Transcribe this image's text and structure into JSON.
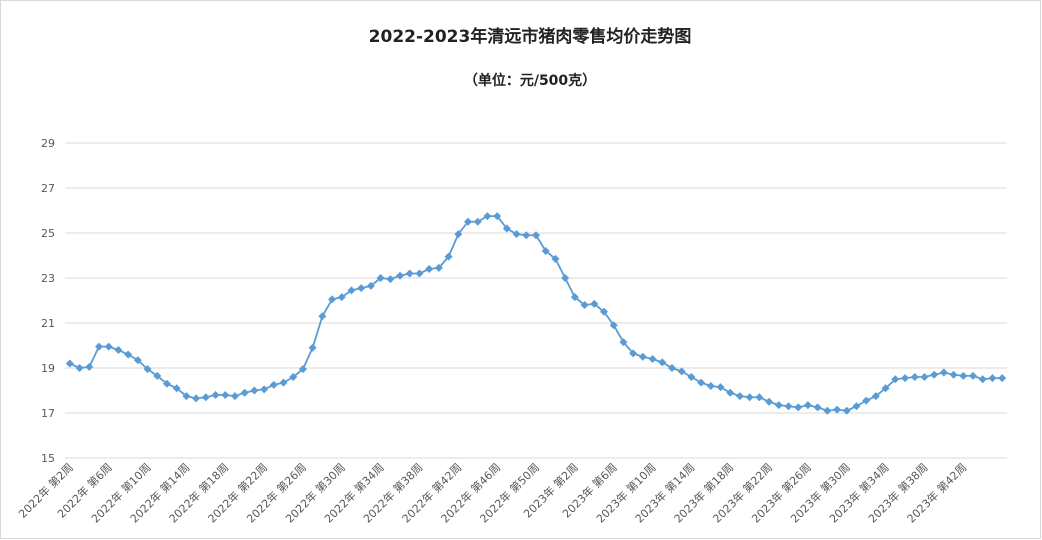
{
  "chart_data": {
    "type": "line",
    "title": "2022-2023年清远市猪肉零售均价走势图",
    "subtitle": "（单位：元/500克）",
    "categories": [
      "2022年 第2周",
      null,
      null,
      null,
      "2022年 第6周",
      null,
      null,
      null,
      "2022年 第10周",
      null,
      null,
      null,
      "2022年 第14周",
      null,
      null,
      null,
      "2022年 第18周",
      null,
      null,
      null,
      "2022年 第22周",
      null,
      null,
      null,
      "2022年 第26周",
      null,
      null,
      null,
      "2022年 第30周",
      null,
      null,
      null,
      "2022年 第34周",
      null,
      null,
      null,
      "2022年 第38周",
      null,
      null,
      null,
      "2022年 第42周",
      null,
      null,
      null,
      "2022年 第46周",
      null,
      null,
      null,
      "2022年 第50周",
      null,
      null,
      null,
      "2023年 第2周",
      null,
      null,
      null,
      "2023年 第6周",
      null,
      null,
      null,
      "2023年 第10周",
      null,
      null,
      null,
      "2023年 第14周",
      null,
      null,
      null,
      "2023年 第18周",
      null,
      null,
      null,
      "2023年 第22周",
      null,
      null,
      null,
      "2023年 第26周",
      null,
      null,
      null,
      "2023年 第30周",
      null,
      null,
      null,
      "2023年 第34周",
      null,
      null,
      null,
      "2023年 第38周",
      null,
      null,
      null,
      "2023年 第42周",
      null,
      null,
      null,
      null
    ],
    "series": [
      {
        "color": "#5b9bd5",
        "values": [
          19.2,
          19.0,
          19.05,
          19.95,
          19.95,
          19.8,
          19.6,
          19.35,
          18.95,
          18.65,
          18.3,
          18.1,
          17.75,
          17.65,
          17.7,
          17.8,
          17.8,
          17.75,
          17.9,
          18.0,
          18.05,
          18.25,
          18.35,
          18.6,
          18.95,
          19.9,
          21.3,
          22.05,
          22.15,
          22.45,
          22.55,
          22.65,
          23.0,
          22.95,
          23.1,
          23.2,
          23.2,
          23.4,
          23.45,
          23.95,
          24.95,
          25.5,
          25.5,
          25.75,
          25.75,
          25.2,
          24.95,
          24.9,
          24.9,
          24.2,
          23.85,
          23.0,
          22.15,
          21.8,
          21.85,
          21.5,
          20.9,
          20.15,
          19.65,
          19.5,
          19.4,
          19.25,
          19.0,
          18.85,
          18.6,
          18.35,
          18.2,
          18.15,
          17.9,
          17.75,
          17.7,
          17.7,
          17.5,
          17.35,
          17.3,
          17.25,
          17.35,
          17.25,
          17.1,
          17.15,
          17.1,
          17.3,
          17.55,
          17.75,
          18.1,
          18.5,
          18.55,
          18.6,
          18.6,
          18.7,
          18.8,
          18.7,
          18.65,
          18.65,
          18.5,
          18.55,
          18.55
        ]
      }
    ],
    "ylim": [
      15,
      29
    ],
    "yticks": [
      15,
      17,
      19,
      21,
      23,
      25,
      27,
      29
    ],
    "grid": true
  }
}
